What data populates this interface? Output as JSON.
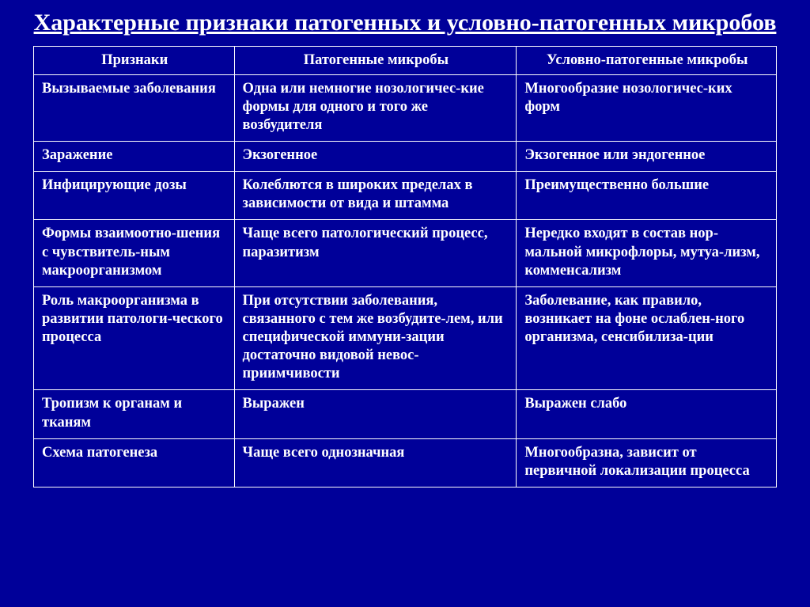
{
  "title": "Характерные признаки патогенных и условно-патогенных микробов",
  "table": {
    "columns": [
      "Признаки",
      "Патогенные микробы",
      "Условно-патогенные микробы"
    ],
    "rows": [
      [
        "Вызываемые заболевания",
        "Одна или немногие нозологичес-кие формы для одного и того же возбудителя",
        "Многообразие нозологичес-ких форм"
      ],
      [
        "Заражение",
        "Экзогенное",
        "Экзогенное или эндогенное"
      ],
      [
        "Инфицирующие дозы",
        "Колеблются в широких пределах в зависимости от вида и штамма",
        "Преимущественно большие"
      ],
      [
        "Формы взаимоотно-шения с чувствитель-ным макроорганизмом",
        "Чаще всего патологический процесс, паразитизм",
        "Нередко входят в состав нор-мальной микрофлоры, мутуа-лизм, комменсализм"
      ],
      [
        "Роль макроорганизма в развитии патологи-ческого процесса",
        "При отсутствии заболевания, связанного с тем же возбудите-лем, или специфической иммуни-зации достаточно видовой невос-приимчивости",
        "Заболевание, как правило, возникает на фоне ослаблен-ного организма, сенсибилиза-ции"
      ],
      [
        "Тропизм к  органам и тканям",
        "Выражен",
        "Выражен слабо"
      ],
      [
        "Схема патогенеза",
        "Чаще всего однозначная",
        "Многообразна, зависит от первичной локализации процесса"
      ]
    ]
  },
  "style": {
    "background_color": "#000099",
    "text_color": "#ffffff",
    "border_color": "#ffffff",
    "title_fontsize": 30,
    "cell_fontsize": 18.5,
    "font_family": "Times New Roman",
    "column_widths_pct": [
      27,
      38,
      35
    ]
  }
}
